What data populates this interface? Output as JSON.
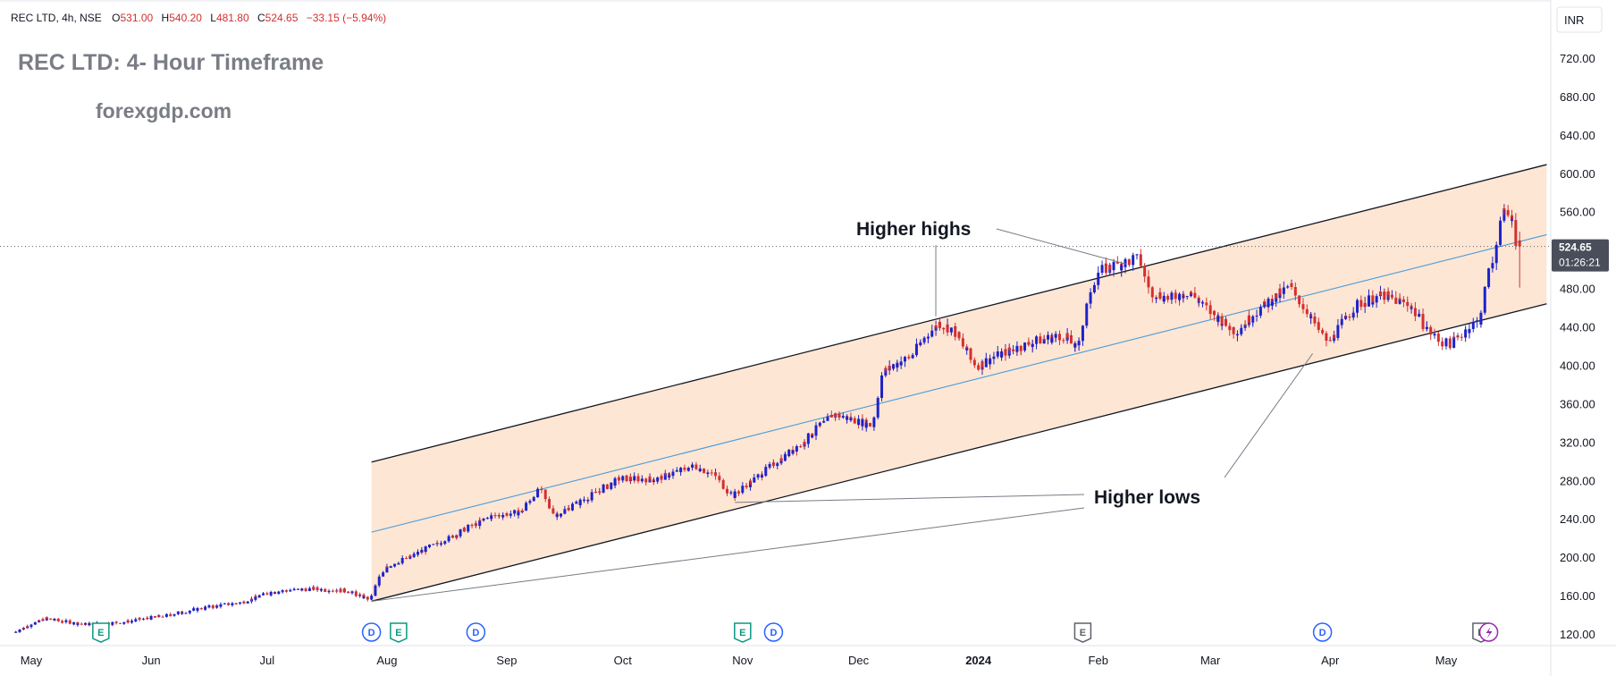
{
  "header": {
    "symbol": "REC LTD, 4h, NSE",
    "open_label": "O",
    "open": "531.00",
    "high_label": "H",
    "high": "540.20",
    "low_label": "L",
    "low": "481.80",
    "close_label": "C",
    "close": "524.65",
    "change": "−33.15 (−5.94%)"
  },
  "currency": "INR",
  "price_tag": {
    "price": "524.65",
    "countdown": "01:26:21"
  },
  "colors": {
    "up": "#1e22c8",
    "down": "#d32f2f",
    "channel_fill": "#fde2cc",
    "channel_line": "#131722",
    "mid_line": "#4a9bd9",
    "accent": "#5d606b"
  },
  "chart_data": {
    "type": "candlestick",
    "title": "REC LTD: 4- Hour Timeframe",
    "subtitle": "forexgdp.com",
    "y_ticks": [
      120,
      160,
      200,
      240,
      280,
      320,
      360,
      400,
      440,
      480,
      520,
      560,
      600,
      640,
      680,
      720
    ],
    "y_tick_labels": [
      "120.00",
      "160.00",
      "200.00",
      "240.00",
      "280.00",
      "320.00",
      "360.00",
      "400.00",
      "440.00",
      "480.00",
      "520.00",
      "560.00",
      "600.00",
      "640.00",
      "680.00",
      "720.00"
    ],
    "x_labels": [
      "May",
      "Jun",
      "Jul",
      "Aug",
      "Sep",
      "Oct",
      "Nov",
      "Dec",
      "2024",
      "Feb",
      "Mar",
      "Apr",
      "May"
    ],
    "x_label_dates": [
      "2023-05",
      "2023-06",
      "2023-07",
      "2023-08",
      "2023-09",
      "2023-10",
      "2023-11",
      "2023-12",
      "2024-01",
      "2024-02",
      "2024-03",
      "2024-04",
      "2024-05"
    ],
    "close_path": [
      [
        "2023-04-27",
        123
      ],
      [
        "2023-05-05",
        137
      ],
      [
        "2023-05-15",
        131
      ],
      [
        "2023-05-25",
        133
      ],
      [
        "2023-06-05",
        140
      ],
      [
        "2023-06-15",
        148
      ],
      [
        "2023-06-25",
        154
      ],
      [
        "2023-07-03",
        165
      ],
      [
        "2023-07-13",
        168
      ],
      [
        "2023-07-22",
        166
      ],
      [
        "2023-07-28",
        157
      ],
      [
        "2023-08-01",
        190
      ],
      [
        "2023-08-08",
        202
      ],
      [
        "2023-08-18",
        222
      ],
      [
        "2023-08-28",
        243
      ],
      [
        "2023-09-05",
        248
      ],
      [
        "2023-09-10",
        272
      ],
      [
        "2023-09-14",
        244
      ],
      [
        "2023-09-22",
        262
      ],
      [
        "2023-10-01",
        283
      ],
      [
        "2023-10-10",
        282
      ],
      [
        "2023-10-20",
        296
      ],
      [
        "2023-10-25",
        287
      ],
      [
        "2023-10-30",
        265
      ],
      [
        "2023-11-07",
        290
      ],
      [
        "2023-11-17",
        320
      ],
      [
        "2023-11-25",
        350
      ],
      [
        "2023-12-05",
        338
      ],
      [
        "2023-12-08",
        395
      ],
      [
        "2023-12-15",
        410
      ],
      [
        "2023-12-22",
        445
      ],
      [
        "2023-12-26",
        438
      ],
      [
        "2024-01-01",
        400
      ],
      [
        "2024-01-08",
        414
      ],
      [
        "2024-01-18",
        428
      ],
      [
        "2024-01-24",
        432
      ],
      [
        "2024-01-27",
        418
      ],
      [
        "2024-02-01",
        498
      ],
      [
        "2024-02-07",
        506
      ],
      [
        "2024-02-12",
        512
      ],
      [
        "2024-02-15",
        478
      ],
      [
        "2024-02-20",
        470
      ],
      [
        "2024-02-25",
        478
      ],
      [
        "2024-03-01",
        458
      ],
      [
        "2024-03-08",
        436
      ],
      [
        "2024-03-15",
        462
      ],
      [
        "2024-03-22",
        483
      ],
      [
        "2024-03-27",
        454
      ],
      [
        "2024-04-01",
        424
      ],
      [
        "2024-04-08",
        463
      ],
      [
        "2024-04-15",
        474
      ],
      [
        "2024-04-22",
        464
      ],
      [
        "2024-04-28",
        432
      ],
      [
        "2024-05-02",
        422
      ],
      [
        "2024-05-06",
        436
      ],
      [
        "2024-05-10",
        448
      ],
      [
        "2024-05-14",
        520
      ],
      [
        "2024-05-16",
        558
      ],
      [
        "2024-05-18",
        557
      ],
      [
        "2024-05-20",
        524.65
      ]
    ],
    "last_candle": {
      "open": 531.0,
      "high": 540.2,
      "low": 481.8,
      "close": 524.65
    },
    "channel": {
      "upper": [
        [
          "2023-07-28",
          300
        ],
        [
          "2024-05-27",
          610
        ]
      ],
      "lower": [
        [
          "2023-07-28",
          155
        ],
        [
          "2024-05-27",
          465
        ]
      ],
      "mid": [
        [
          "2023-07-28",
          227
        ],
        [
          "2024-05-27",
          537
        ]
      ]
    },
    "annotations": [
      {
        "text": "Higher highs",
        "targets": [
          [
            "2023-12-17",
            450
          ],
          [
            "2024-02-10",
            512
          ]
        ]
      },
      {
        "text": "Higher lows",
        "targets": [
          [
            "2023-10-30",
            258
          ],
          [
            "2023-07-28",
            155
          ],
          [
            "2024-03-27",
            415
          ]
        ]
      }
    ],
    "events": [
      {
        "type": "E",
        "date": "2023-05-19"
      },
      {
        "type": "D",
        "date": "2023-07-28"
      },
      {
        "type": "E",
        "date": "2023-08-04"
      },
      {
        "type": "D",
        "date": "2023-08-24"
      },
      {
        "type": "E",
        "date": "2023-11-01"
      },
      {
        "type": "D",
        "date": "2023-11-09"
      },
      {
        "type": "E",
        "date": "2024-01-28"
      },
      {
        "type": "D",
        "date": "2024-03-30"
      },
      {
        "type": "E",
        "date": "2024-05-10"
      },
      {
        "type": "S",
        "date": "2024-05-12"
      }
    ]
  }
}
